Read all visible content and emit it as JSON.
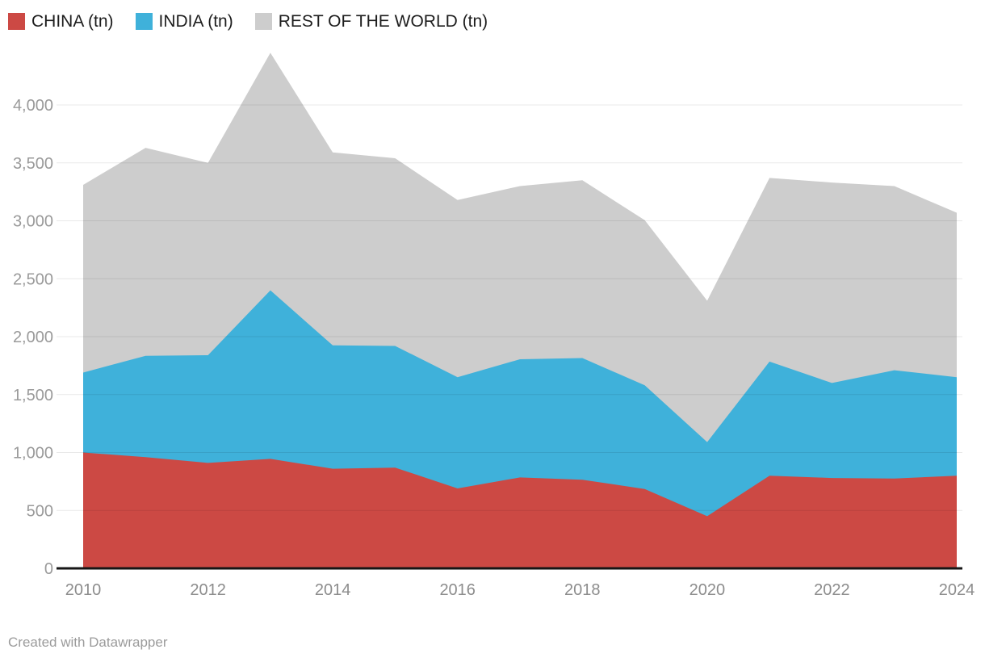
{
  "footer": {
    "credit": "Created with Datawrapper"
  },
  "colors": {
    "china": "#cc4944",
    "india": "#3fb1da",
    "rest_of_world": "#cdcdcd",
    "grid_over_white": "#e9e9e9",
    "axis_baseline": "#161616",
    "y_tick_text": "#9a9a9a",
    "x_tick_text": "#8c8c8c",
    "legend_text": "#1d1d1d",
    "footer_text": "#9b9b9b"
  },
  "chart_data": {
    "type": "area",
    "stacked": true,
    "title": "",
    "unit": "tn",
    "grid": "horizontal",
    "legend_position": "top-left",
    "x": [
      2010,
      2011,
      2012,
      2013,
      2014,
      2015,
      2016,
      2017,
      2018,
      2019,
      2020,
      2021,
      2022,
      2023,
      2024
    ],
    "series": [
      {
        "name": "CHINA (tn)",
        "color": "#cc4944",
        "values": [
          1000,
          960,
          910,
          945,
          860,
          870,
          690,
          785,
          765,
          685,
          450,
          800,
          780,
          775,
          800
        ]
      },
      {
        "name": "INDIA (tn)",
        "color": "#3fb1da",
        "values": [
          690,
          875,
          930,
          1455,
          1065,
          1050,
          960,
          1020,
          1050,
          895,
          640,
          985,
          820,
          935,
          850
        ]
      },
      {
        "name": "REST OF THE WORLD (tn)",
        "color": "#cdcdcd",
        "values": [
          1620,
          1795,
          1660,
          2050,
          1665,
          1620,
          1530,
          1495,
          1535,
          1425,
          1220,
          1585,
          1730,
          1590,
          1420
        ]
      }
    ],
    "stacked_totals": [
      3310,
      3630,
      3500,
      4450,
      3590,
      3540,
      3180,
      3300,
      3350,
      3005,
      2310,
      3370,
      3330,
      3300,
      3070
    ],
    "ylim": [
      0,
      4500
    ],
    "y_ticks": [
      {
        "value": 0,
        "label": "0"
      },
      {
        "value": 500,
        "label": "500"
      },
      {
        "value": 1000,
        "label": "1,000"
      },
      {
        "value": 1500,
        "label": "1,500"
      },
      {
        "value": 2000,
        "label": "2,000"
      },
      {
        "value": 2500,
        "label": "2,500"
      },
      {
        "value": 3000,
        "label": "3,000"
      },
      {
        "value": 3500,
        "label": "3,500"
      },
      {
        "value": 4000,
        "label": "4,000"
      }
    ],
    "x_tick_labels": [
      "2010",
      "2012",
      "2014",
      "2016",
      "2018",
      "2020",
      "2022",
      "2024"
    ]
  }
}
